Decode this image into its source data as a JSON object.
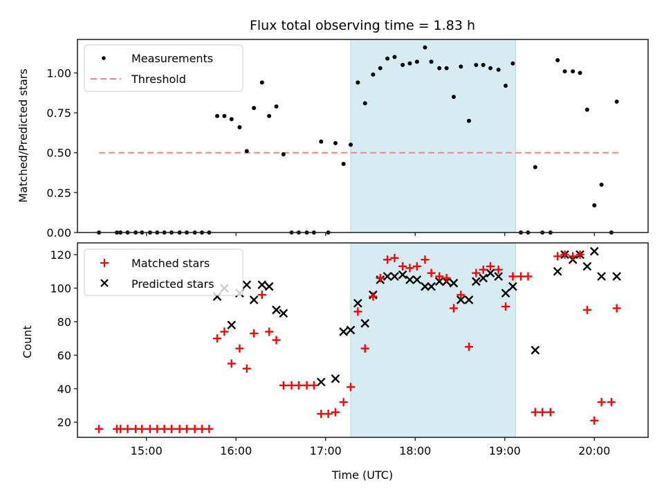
{
  "chart_data": [
    {
      "type": "scatter",
      "title": "Flux total observing time = 1.83 h",
      "xlabel": "",
      "ylabel": "Matched/Predicted stars",
      "xlim": [
        14.23,
        20.6
      ],
      "ylim": [
        0.0,
        1.21
      ],
      "yticks": [
        0.0,
        0.25,
        0.5,
        0.75,
        1.0
      ],
      "ytick_labels": [
        "0.00",
        "0.25",
        "0.50",
        "0.75",
        "1.00"
      ],
      "xticks": [
        15,
        16,
        17,
        18,
        19,
        20
      ],
      "shaded_span": {
        "x0": 17.28,
        "x1": 19.12,
        "color": "#add8e6"
      },
      "legend": {
        "placement": "top-left",
        "entries": [
          {
            "label": "Measurements",
            "marker": "dot",
            "color": "#000000"
          },
          {
            "label": "Threshold",
            "marker": "dashed-line",
            "color": "#ff7f7f"
          }
        ]
      },
      "threshold": {
        "y": 0.5,
        "x0": 14.47,
        "x1": 20.3,
        "color": "#ff7f7f"
      },
      "series": [
        {
          "name": "Measurements",
          "color": "#000000",
          "x": [
            14.47,
            14.67,
            14.71,
            14.79,
            14.88,
            14.95,
            15.04,
            15.12,
            15.2,
            15.28,
            15.37,
            15.45,
            15.54,
            15.62,
            15.7,
            15.79,
            15.87,
            15.95,
            16.04,
            16.12,
            16.2,
            16.29,
            16.37,
            16.45,
            16.53,
            16.62,
            16.7,
            16.79,
            16.87,
            16.95,
            17.03,
            17.11,
            17.2,
            17.28,
            17.36,
            17.44,
            17.53,
            17.61,
            17.69,
            17.77,
            17.86,
            17.94,
            18.02,
            18.11,
            18.18,
            18.27,
            18.35,
            18.43,
            18.51,
            18.6,
            18.68,
            18.76,
            18.84,
            18.93,
            19.01,
            19.09,
            19.18,
            19.26,
            19.34,
            19.42,
            19.51,
            19.59,
            19.67,
            19.76,
            19.84,
            19.92,
            20.0,
            20.08,
            20.19,
            20.25
          ],
          "y": [
            0,
            0,
            0,
            0,
            0,
            0,
            0,
            0,
            0,
            0,
            0,
            0,
            0,
            0,
            0,
            0.73,
            0.73,
            0.71,
            0.66,
            0.51,
            0.78,
            0.94,
            0.73,
            0.79,
            0.49,
            0,
            0,
            0,
            0,
            0.57,
            0,
            0.56,
            0.43,
            0.55,
            0.94,
            0.81,
            0.99,
            1.03,
            1.09,
            1.1,
            1.05,
            1.06,
            1.07,
            1.16,
            1.07,
            1.03,
            1.03,
            0.85,
            1.04,
            0.7,
            1.05,
            1.05,
            1.03,
            1.02,
            0.92,
            1.06,
            0,
            0,
            0.41,
            0,
            0,
            1.08,
            1.01,
            1.01,
            1.0,
            0.77,
            0.17,
            0.3,
            0,
            0.82
          ]
        }
      ]
    },
    {
      "type": "scatter",
      "title": "",
      "xlabel": "Time (UTC)",
      "ylabel": "Count",
      "xlim": [
        14.23,
        20.6
      ],
      "ylim": [
        11,
        127
      ],
      "yticks": [
        20,
        40,
        60,
        80,
        100,
        120
      ],
      "ytick_labels": [
        "20",
        "40",
        "60",
        "80",
        "100",
        "120"
      ],
      "xticks": [
        15,
        16,
        17,
        18,
        19,
        20
      ],
      "xtick_labels": [
        "15:00",
        "16:00",
        "17:00",
        "18:00",
        "19:00",
        "20:00"
      ],
      "shaded_span": {
        "x0": 17.28,
        "x1": 19.12,
        "color": "#add8e6"
      },
      "legend": {
        "placement": "top-left",
        "entries": [
          {
            "label": "Matched stars",
            "marker": "plus",
            "color": "#ff0000"
          },
          {
            "label": "Predicted stars",
            "marker": "x",
            "color": "#000000"
          }
        ]
      },
      "series": [
        {
          "name": "Matched stars",
          "marker": "plus",
          "color": "#ff0000",
          "x": [
            14.47,
            14.67,
            14.71,
            14.79,
            14.88,
            14.95,
            15.04,
            15.12,
            15.2,
            15.28,
            15.37,
            15.45,
            15.54,
            15.62,
            15.7,
            15.79,
            15.87,
            15.95,
            16.04,
            16.12,
            16.2,
            16.29,
            16.37,
            16.45,
            16.53,
            16.62,
            16.7,
            16.79,
            16.87,
            16.95,
            17.03,
            17.11,
            17.2,
            17.28,
            17.36,
            17.44,
            17.53,
            17.61,
            17.69,
            17.77,
            17.86,
            17.94,
            18.02,
            18.11,
            18.18,
            18.27,
            18.35,
            18.43,
            18.51,
            18.6,
            18.68,
            18.76,
            18.84,
            18.93,
            19.01,
            19.09,
            19.18,
            19.26,
            19.34,
            19.42,
            19.51,
            19.59,
            19.67,
            19.76,
            19.84,
            19.92,
            20.0,
            20.08,
            20.19,
            20.25
          ],
          "y": [
            16,
            16,
            16,
            16,
            16,
            16,
            16,
            16,
            16,
            16,
            16,
            16,
            16,
            16,
            16,
            70,
            74,
            55,
            64,
            52,
            73,
            96,
            74,
            69,
            42,
            42,
            42,
            42,
            42,
            25,
            25,
            26,
            32,
            41,
            86,
            64,
            95,
            106,
            117,
            118,
            113,
            112,
            113,
            117,
            109,
            107,
            106,
            88,
            96,
            65,
            109,
            111,
            113,
            111,
            89,
            107,
            107,
            107,
            26,
            26,
            26,
            119,
            120,
            119,
            120,
            87,
            21,
            32,
            32,
            88
          ]
        },
        {
          "name": "Predicted stars",
          "marker": "x",
          "color": "#000000",
          "x": [
            15.79,
            15.87,
            15.95,
            16.04,
            16.12,
            16.2,
            16.29,
            16.37,
            16.45,
            16.53,
            16.95,
            17.11,
            17.2,
            17.28,
            17.36,
            17.44,
            17.53,
            17.61,
            17.69,
            17.77,
            17.86,
            17.94,
            18.02,
            18.11,
            18.18,
            18.27,
            18.35,
            18.43,
            18.51,
            18.6,
            18.68,
            18.76,
            18.84,
            18.93,
            19.01,
            19.09,
            19.34,
            19.59,
            19.67,
            19.76,
            19.84,
            19.92,
            20.0,
            20.08,
            20.25
          ],
          "y": [
            95,
            100,
            78,
            97,
            102,
            93,
            102,
            101,
            87,
            85,
            44,
            46,
            74,
            75,
            91,
            79,
            96,
            105,
            107,
            107,
            108,
            105,
            105,
            101,
            101,
            104,
            104,
            103,
            93,
            93,
            104,
            106,
            109,
            107,
            97,
            101,
            63,
            110,
            120,
            117,
            120,
            113,
            122,
            107,
            107
          ]
        }
      ]
    }
  ]
}
